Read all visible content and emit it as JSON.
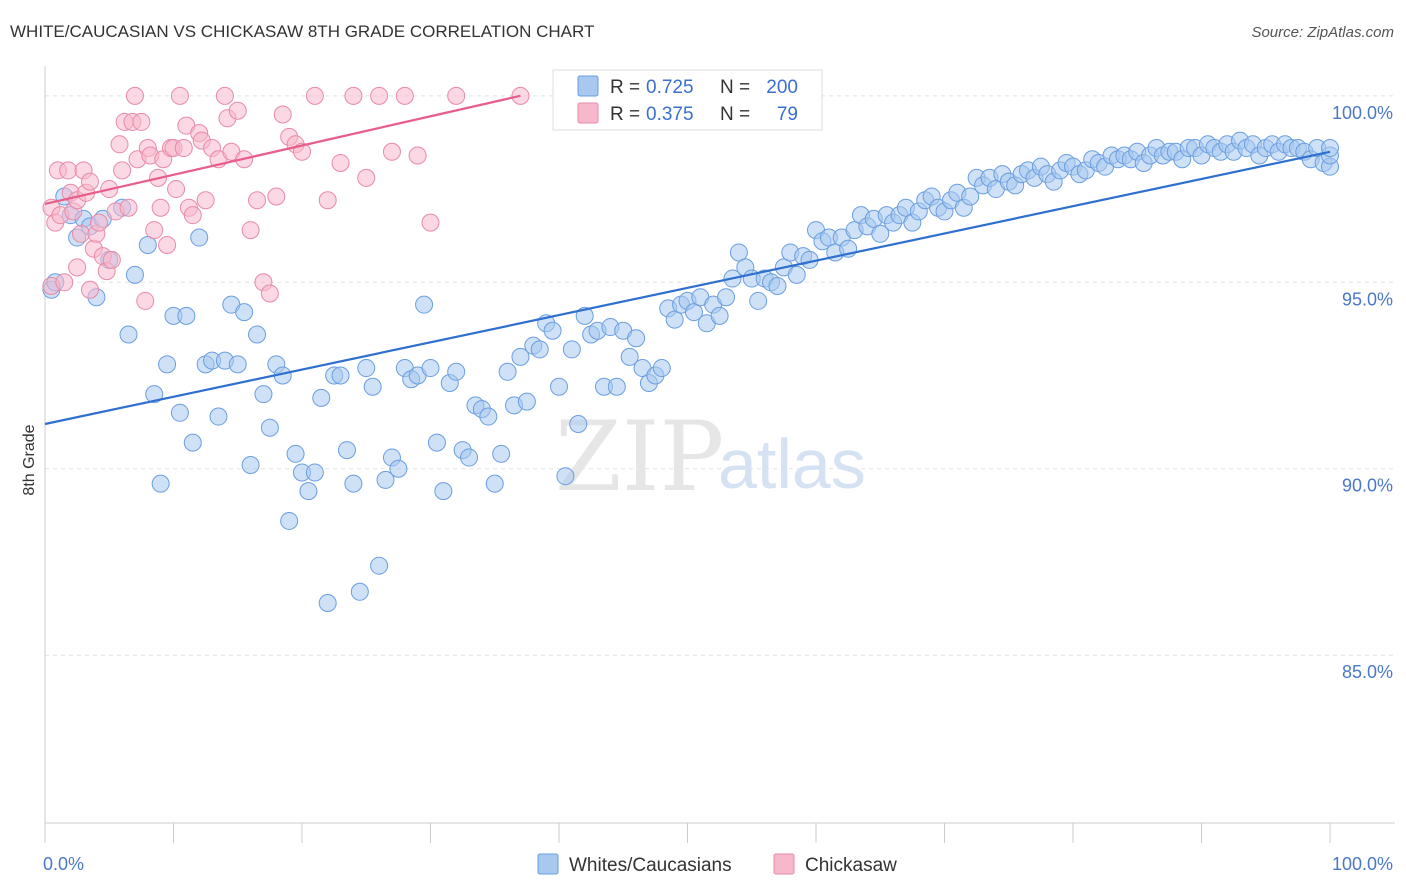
{
  "title": "WHITE/CAUCASIAN VS CHICKASAW 8TH GRADE CORRELATION CHART",
  "source": "Source: ZipAtlas.com",
  "watermark": {
    "zip": "ZIP",
    "atlas": "atlas"
  },
  "chart_data": {
    "type": "scatter",
    "ylabel": "8th Grade",
    "xlim": [
      0,
      100
    ],
    "ylim": [
      80.5,
      100.8
    ],
    "x_ticks": [
      {
        "value": 0,
        "label": "0.0%"
      },
      {
        "value": 100,
        "label": "100.0%"
      }
    ],
    "y_ticks": [
      {
        "value": 100,
        "label": "100.0%"
      },
      {
        "value": 95,
        "label": "95.0%"
      },
      {
        "value": 90,
        "label": "90.0%"
      },
      {
        "value": 85,
        "label": "85.0%"
      }
    ],
    "grid": "horizontal dashed",
    "legend_top": [
      {
        "r_label": "R =",
        "r": "0.725",
        "n_label": "N =",
        "n": "200",
        "color": "#a8c8f0"
      },
      {
        "r_label": "R =",
        "r": "0.375",
        "n_label": "N =",
        "n": "79",
        "color": "#f7b8cc"
      }
    ],
    "series": [
      {
        "name": "Whites/Caucasians",
        "color": "#a8c8f0",
        "stroke": "#6a9ee0",
        "trend": {
          "x": [
            0,
            100
          ],
          "y": [
            91.2,
            98.5
          ],
          "color": "#2f6fd0"
        },
        "points": [
          [
            0.5,
            94.8
          ],
          [
            0.8,
            95.0
          ],
          [
            1.5,
            97.3
          ],
          [
            2.0,
            96.8
          ],
          [
            2.5,
            96.2
          ],
          [
            3.0,
            96.7
          ],
          [
            3.5,
            96.5
          ],
          [
            4.0,
            94.6
          ],
          [
            4.5,
            96.7
          ],
          [
            5.0,
            95.6
          ],
          [
            6.0,
            97.0
          ],
          [
            6.5,
            93.6
          ],
          [
            7.0,
            95.2
          ],
          [
            8.0,
            96.0
          ],
          [
            8.5,
            92.0
          ],
          [
            9.0,
            89.6
          ],
          [
            9.5,
            92.8
          ],
          [
            10.0,
            94.1
          ],
          [
            10.5,
            91.5
          ],
          [
            11.0,
            94.1
          ],
          [
            11.5,
            90.7
          ],
          [
            12.0,
            96.2
          ],
          [
            12.5,
            92.8
          ],
          [
            13.0,
            92.9
          ],
          [
            13.5,
            91.4
          ],
          [
            14.0,
            92.9
          ],
          [
            14.5,
            94.4
          ],
          [
            15.0,
            92.8
          ],
          [
            15.5,
            94.2
          ],
          [
            16.0,
            90.1
          ],
          [
            16.5,
            93.6
          ],
          [
            17.0,
            92.0
          ],
          [
            17.5,
            91.1
          ],
          [
            18.0,
            92.8
          ],
          [
            18.5,
            92.5
          ],
          [
            19.0,
            88.6
          ],
          [
            19.5,
            90.4
          ],
          [
            20.0,
            89.9
          ],
          [
            20.5,
            89.4
          ],
          [
            21.0,
            89.9
          ],
          [
            21.5,
            91.9
          ],
          [
            22.0,
            86.4
          ],
          [
            22.5,
            92.5
          ],
          [
            23.0,
            92.5
          ],
          [
            23.5,
            90.5
          ],
          [
            24.0,
            89.6
          ],
          [
            24.5,
            86.7
          ],
          [
            25.0,
            92.7
          ],
          [
            25.5,
            92.2
          ],
          [
            26.0,
            87.4
          ],
          [
            26.5,
            89.7
          ],
          [
            27.0,
            90.3
          ],
          [
            27.5,
            90.0
          ],
          [
            28.0,
            92.7
          ],
          [
            28.5,
            92.4
          ],
          [
            29.0,
            92.5
          ],
          [
            29.5,
            94.4
          ],
          [
            30.0,
            92.7
          ],
          [
            30.5,
            90.7
          ],
          [
            31.0,
            89.4
          ],
          [
            31.5,
            92.3
          ],
          [
            32.0,
            92.6
          ],
          [
            32.5,
            90.5
          ],
          [
            33.0,
            90.3
          ],
          [
            33.5,
            91.7
          ],
          [
            34.0,
            91.6
          ],
          [
            34.5,
            91.4
          ],
          [
            35.0,
            89.6
          ],
          [
            35.5,
            90.4
          ],
          [
            36.0,
            92.6
          ],
          [
            36.5,
            91.7
          ],
          [
            37.0,
            93.0
          ],
          [
            37.5,
            91.8
          ],
          [
            38.0,
            93.3
          ],
          [
            38.5,
            93.2
          ],
          [
            39.0,
            93.9
          ],
          [
            39.5,
            93.7
          ],
          [
            40.0,
            92.2
          ],
          [
            40.5,
            89.8
          ],
          [
            41.0,
            93.2
          ],
          [
            41.5,
            91.2
          ],
          [
            42.0,
            94.1
          ],
          [
            42.5,
            93.6
          ],
          [
            43.0,
            93.7
          ],
          [
            43.5,
            92.2
          ],
          [
            44.0,
            93.8
          ],
          [
            44.5,
            92.2
          ],
          [
            45.0,
            93.7
          ],
          [
            45.5,
            93.0
          ],
          [
            46.0,
            93.5
          ],
          [
            46.5,
            92.7
          ],
          [
            47.0,
            92.3
          ],
          [
            47.5,
            92.5
          ],
          [
            48.0,
            92.7
          ],
          [
            48.5,
            94.3
          ],
          [
            49.0,
            94.0
          ],
          [
            49.5,
            94.4
          ],
          [
            50.0,
            94.5
          ],
          [
            50.5,
            94.2
          ],
          [
            51.0,
            94.6
          ],
          [
            51.5,
            93.9
          ],
          [
            52.0,
            94.4
          ],
          [
            52.5,
            94.1
          ],
          [
            53.0,
            94.6
          ],
          [
            53.5,
            95.1
          ],
          [
            54.0,
            95.8
          ],
          [
            54.5,
            95.4
          ],
          [
            55.0,
            95.1
          ],
          [
            55.5,
            94.5
          ],
          [
            56.0,
            95.1
          ],
          [
            56.5,
            95.0
          ],
          [
            57.0,
            94.9
          ],
          [
            57.5,
            95.4
          ],
          [
            58.0,
            95.8
          ],
          [
            58.5,
            95.2
          ],
          [
            59.0,
            95.7
          ],
          [
            59.5,
            95.6
          ],
          [
            60.0,
            96.4
          ],
          [
            60.5,
            96.1
          ],
          [
            61.0,
            96.2
          ],
          [
            61.5,
            95.8
          ],
          [
            62.0,
            96.2
          ],
          [
            62.5,
            95.9
          ],
          [
            63.0,
            96.4
          ],
          [
            63.5,
            96.8
          ],
          [
            64.0,
            96.5
          ],
          [
            64.5,
            96.7
          ],
          [
            65.0,
            96.3
          ],
          [
            65.5,
            96.8
          ],
          [
            66.0,
            96.6
          ],
          [
            66.5,
            96.8
          ],
          [
            67.0,
            97.0
          ],
          [
            67.5,
            96.6
          ],
          [
            68.0,
            96.9
          ],
          [
            68.5,
            97.2
          ],
          [
            69.0,
            97.3
          ],
          [
            69.5,
            97.0
          ],
          [
            70.0,
            96.9
          ],
          [
            70.5,
            97.2
          ],
          [
            71.0,
            97.4
          ],
          [
            71.5,
            97.0
          ],
          [
            72.0,
            97.3
          ],
          [
            72.5,
            97.8
          ],
          [
            73.0,
            97.6
          ],
          [
            73.5,
            97.8
          ],
          [
            74.0,
            97.5
          ],
          [
            74.5,
            97.9
          ],
          [
            75.0,
            97.7
          ],
          [
            75.5,
            97.6
          ],
          [
            76.0,
            97.9
          ],
          [
            76.5,
            98.0
          ],
          [
            77.0,
            97.8
          ],
          [
            77.5,
            98.1
          ],
          [
            78.0,
            97.9
          ],
          [
            78.5,
            97.7
          ],
          [
            79.0,
            98.0
          ],
          [
            79.5,
            98.2
          ],
          [
            80.0,
            98.1
          ],
          [
            80.5,
            97.9
          ],
          [
            81.0,
            98.0
          ],
          [
            81.5,
            98.3
          ],
          [
            82.0,
            98.2
          ],
          [
            82.5,
            98.1
          ],
          [
            83.0,
            98.4
          ],
          [
            83.5,
            98.3
          ],
          [
            84.0,
            98.4
          ],
          [
            84.5,
            98.3
          ],
          [
            85.0,
            98.5
          ],
          [
            85.5,
            98.2
          ],
          [
            86.0,
            98.4
          ],
          [
            86.5,
            98.6
          ],
          [
            87.0,
            98.4
          ],
          [
            87.5,
            98.5
          ],
          [
            88.0,
            98.5
          ],
          [
            88.5,
            98.3
          ],
          [
            89.0,
            98.6
          ],
          [
            89.5,
            98.6
          ],
          [
            90.0,
            98.4
          ],
          [
            90.5,
            98.7
          ],
          [
            91.0,
            98.6
          ],
          [
            91.5,
            98.5
          ],
          [
            92.0,
            98.7
          ],
          [
            92.5,
            98.5
          ],
          [
            93.0,
            98.8
          ],
          [
            93.5,
            98.6
          ],
          [
            94.0,
            98.7
          ],
          [
            94.5,
            98.4
          ],
          [
            95.0,
            98.6
          ],
          [
            95.5,
            98.7
          ],
          [
            96.0,
            98.5
          ],
          [
            96.5,
            98.7
          ],
          [
            97.0,
            98.6
          ],
          [
            97.5,
            98.6
          ],
          [
            98.0,
            98.5
          ],
          [
            98.5,
            98.3
          ],
          [
            99.0,
            98.6
          ],
          [
            99.5,
            98.2
          ],
          [
            100.0,
            98.1
          ],
          [
            100.0,
            98.4
          ],
          [
            100.0,
            98.6
          ]
        ]
      },
      {
        "name": "Chickasaw",
        "color": "#f7b8cc",
        "stroke": "#e88aa8",
        "trend": {
          "x": [
            0,
            37
          ],
          "y": [
            97.1,
            100.0
          ],
          "color": "#e85d8a"
        },
        "points": [
          [
            0.5,
            94.9
          ],
          [
            0.5,
            97.0
          ],
          [
            0.8,
            96.6
          ],
          [
            1.0,
            98.0
          ],
          [
            1.2,
            96.8
          ],
          [
            1.5,
            95.0
          ],
          [
            1.8,
            98.0
          ],
          [
            2.0,
            97.4
          ],
          [
            2.2,
            96.9
          ],
          [
            2.5,
            97.2
          ],
          [
            2.5,
            95.4
          ],
          [
            2.8,
            96.3
          ],
          [
            3.0,
            98.0
          ],
          [
            3.2,
            97.4
          ],
          [
            3.5,
            94.8
          ],
          [
            3.5,
            97.7
          ],
          [
            3.8,
            95.9
          ],
          [
            4.0,
            96.3
          ],
          [
            4.2,
            96.6
          ],
          [
            4.5,
            95.7
          ],
          [
            4.8,
            95.3
          ],
          [
            5.0,
            97.5
          ],
          [
            5.2,
            95.6
          ],
          [
            5.5,
            96.9
          ],
          [
            5.8,
            98.7
          ],
          [
            6.0,
            98.0
          ],
          [
            6.2,
            99.3
          ],
          [
            6.5,
            97.0
          ],
          [
            6.8,
            99.3
          ],
          [
            7.0,
            100.0
          ],
          [
            7.2,
            98.3
          ],
          [
            7.5,
            99.3
          ],
          [
            7.8,
            94.5
          ],
          [
            8.0,
            98.6
          ],
          [
            8.2,
            98.4
          ],
          [
            8.5,
            96.4
          ],
          [
            8.8,
            97.8
          ],
          [
            9.0,
            97.0
          ],
          [
            9.2,
            98.3
          ],
          [
            9.5,
            96.0
          ],
          [
            9.8,
            98.6
          ],
          [
            10.0,
            98.6
          ],
          [
            10.2,
            97.5
          ],
          [
            10.5,
            100.0
          ],
          [
            10.8,
            98.6
          ],
          [
            11.0,
            99.2
          ],
          [
            11.2,
            97.0
          ],
          [
            11.5,
            96.8
          ],
          [
            12.0,
            99.0
          ],
          [
            12.2,
            98.8
          ],
          [
            12.5,
            97.2
          ],
          [
            13.0,
            98.6
          ],
          [
            13.5,
            98.3
          ],
          [
            14.0,
            100.0
          ],
          [
            14.2,
            99.4
          ],
          [
            14.5,
            98.5
          ],
          [
            15.0,
            99.6
          ],
          [
            15.5,
            98.3
          ],
          [
            16.0,
            96.4
          ],
          [
            16.5,
            97.2
          ],
          [
            17.0,
            95.0
          ],
          [
            17.5,
            94.7
          ],
          [
            18.0,
            97.3
          ],
          [
            18.5,
            99.5
          ],
          [
            19.0,
            98.9
          ],
          [
            19.5,
            98.7
          ],
          [
            20.0,
            98.5
          ],
          [
            21.0,
            100.0
          ],
          [
            22.0,
            97.2
          ],
          [
            23.0,
            98.2
          ],
          [
            24.0,
            100.0
          ],
          [
            25.0,
            97.8
          ],
          [
            26.0,
            100.0
          ],
          [
            27.0,
            98.5
          ],
          [
            28.0,
            100.0
          ],
          [
            29.0,
            98.4
          ],
          [
            30.0,
            96.6
          ],
          [
            32.0,
            100.0
          ],
          [
            37.0,
            100.0
          ]
        ]
      }
    ]
  }
}
